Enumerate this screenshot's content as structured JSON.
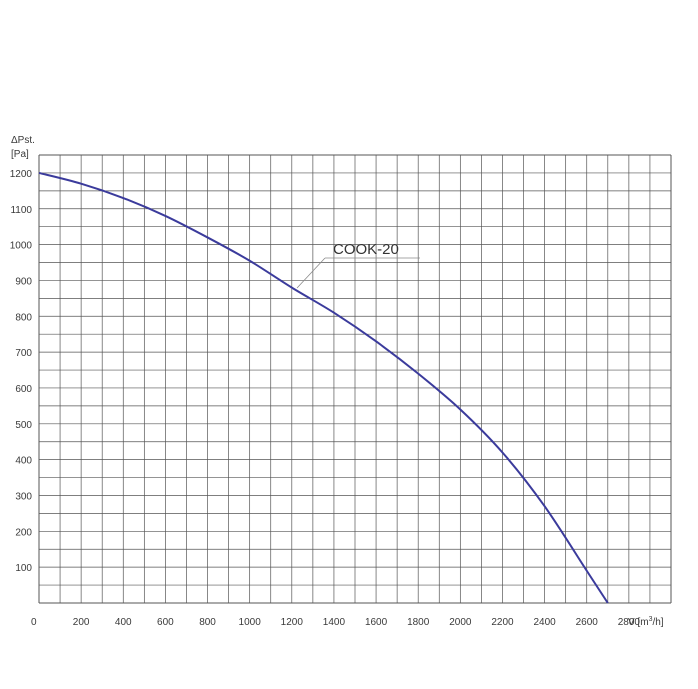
{
  "chart_data": {
    "type": "line",
    "ylabel_line1": "ΔPst.",
    "ylabel_line2": "[Pa]",
    "xlabel_prefix": "V [m",
    "xlabel_sup": "3",
    "xlabel_suffix": "/h]",
    "xlim": [
      0,
      3000
    ],
    "ylim": [
      0,
      1250
    ],
    "x_ticks": [
      0,
      200,
      400,
      600,
      800,
      1000,
      1200,
      1400,
      1600,
      1800,
      2000,
      2200,
      2400,
      2600,
      2800
    ],
    "y_ticks": [
      100,
      200,
      300,
      400,
      500,
      600,
      700,
      800,
      900,
      1000,
      1100,
      1200
    ],
    "grid": true,
    "series": [
      {
        "name": "COOK-20",
        "color": "#3b3b9c",
        "x": [
          0,
          200,
          400,
          600,
          800,
          1000,
          1200,
          1400,
          1600,
          1800,
          2000,
          2200,
          2400,
          2600,
          2700
        ],
        "y": [
          1200,
          1170,
          1130,
          1080,
          1020,
          955,
          880,
          810,
          730,
          640,
          540,
          420,
          270,
          90,
          0
        ]
      }
    ]
  }
}
